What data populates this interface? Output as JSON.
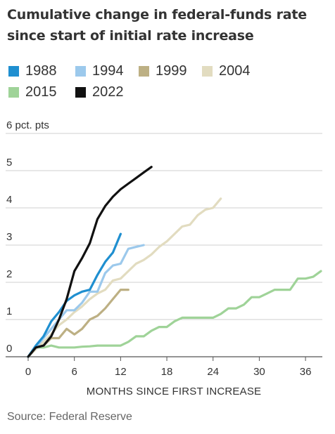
{
  "title": "Cumulative change in federal-funds rate since start of initial rate increase",
  "source": "Source: Federal Reserve",
  "chart_data": {
    "type": "line",
    "xlabel": "MONTHS SINCE FIRST INCREASE",
    "ylabel": "",
    "y_unit_label": "6 pct. pts",
    "xlim": [
      0,
      38
    ],
    "ylim": [
      0,
      6
    ],
    "x_ticks": [
      0,
      6,
      12,
      18,
      24,
      30,
      36
    ],
    "x_tick_labels": [
      "0",
      "6",
      "12",
      "18",
      "24",
      "30",
      "36"
    ],
    "y_ticks": [
      0,
      1,
      2,
      3,
      4,
      5,
      6
    ],
    "y_tick_labels": [
      "0",
      "1",
      "2",
      "3",
      "4",
      "5",
      "6 pct. pts"
    ],
    "grid": true,
    "legend_position": "top",
    "series": [
      {
        "name": "1988",
        "color": "#1f8fd0",
        "x": [
          0,
          1,
          2,
          3,
          4,
          5,
          6,
          7,
          8,
          9,
          10,
          11,
          12
        ],
        "y": [
          0,
          0.3,
          0.55,
          0.95,
          1.2,
          1.5,
          1.65,
          1.75,
          1.8,
          2.2,
          2.55,
          2.8,
          3.3
        ]
      },
      {
        "name": "1994",
        "color": "#9cc9ec",
        "x": [
          0,
          1,
          2,
          3,
          4,
          5,
          6,
          7,
          8,
          9,
          10,
          11,
          12,
          13,
          14,
          15
        ],
        "y": [
          0,
          0.25,
          0.5,
          0.75,
          1.0,
          1.25,
          1.25,
          1.45,
          1.75,
          1.75,
          2.25,
          2.45,
          2.5,
          2.9,
          2.95,
          3.0
        ]
      },
      {
        "name": "1999",
        "color": "#bdb084",
        "x": [
          0,
          1,
          2,
          3,
          4,
          5,
          6,
          7,
          8,
          9,
          10,
          11,
          12,
          13
        ],
        "y": [
          0,
          0.25,
          0.3,
          0.5,
          0.5,
          0.75,
          0.6,
          0.75,
          1.0,
          1.1,
          1.3,
          1.55,
          1.8,
          1.8
        ]
      },
      {
        "name": "2004",
        "color": "#e2dcc0",
        "x": [
          0,
          1,
          2,
          3,
          4,
          5,
          6,
          7,
          8,
          9,
          10,
          11,
          12,
          13,
          14,
          15,
          16,
          17,
          18,
          19,
          20,
          21,
          22,
          23,
          24,
          25
        ],
        "y": [
          0,
          0.2,
          0.4,
          0.6,
          0.85,
          1.0,
          1.2,
          1.35,
          1.55,
          1.7,
          1.8,
          2.05,
          2.1,
          2.3,
          2.5,
          2.6,
          2.75,
          2.95,
          3.1,
          3.3,
          3.5,
          3.55,
          3.8,
          3.95,
          4.0,
          4.25
        ]
      },
      {
        "name": "2015",
        "color": "#9fd398",
        "x": [
          0,
          1,
          2,
          3,
          4,
          5,
          6,
          7,
          8,
          9,
          10,
          11,
          12,
          13,
          14,
          15,
          16,
          17,
          18,
          19,
          20,
          21,
          22,
          23,
          24,
          25,
          26,
          27,
          28,
          29,
          30,
          31,
          32,
          33,
          34,
          35,
          36,
          37,
          38
        ],
        "y": [
          0,
          0.25,
          0.25,
          0.3,
          0.25,
          0.25,
          0.25,
          0.27,
          0.28,
          0.3,
          0.3,
          0.3,
          0.3,
          0.4,
          0.55,
          0.55,
          0.7,
          0.8,
          0.8,
          0.95,
          1.05,
          1.05,
          1.05,
          1.05,
          1.05,
          1.15,
          1.3,
          1.3,
          1.4,
          1.6,
          1.6,
          1.7,
          1.8,
          1.8,
          1.8,
          2.1,
          2.1,
          2.15,
          2.3
        ]
      },
      {
        "name": "2022",
        "color": "#111111",
        "x": [
          0,
          1,
          2,
          3,
          4,
          5,
          6,
          7,
          8,
          9,
          10,
          11,
          12,
          13,
          14,
          15,
          16
        ],
        "y": [
          0,
          0.25,
          0.3,
          0.55,
          1.0,
          1.55,
          2.3,
          2.65,
          3.05,
          3.7,
          4.05,
          4.3,
          4.5,
          4.65,
          4.8,
          4.95,
          5.1
        ]
      }
    ]
  }
}
